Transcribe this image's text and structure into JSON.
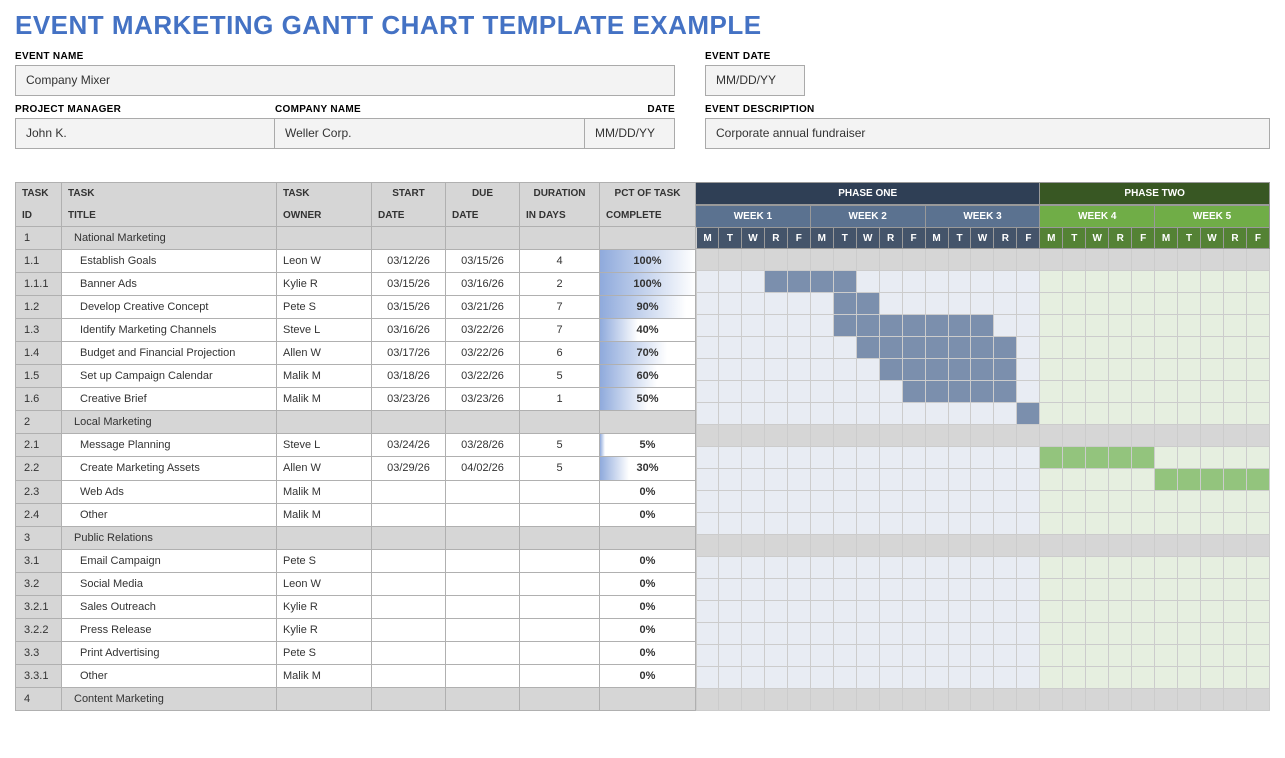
{
  "title": "EVENT MARKETING GANTT CHART TEMPLATE EXAMPLE",
  "meta": {
    "event_name_label": "EVENT NAME",
    "event_name": "Company Mixer",
    "event_date_label": "EVENT DATE",
    "event_date": "MM/DD/YY",
    "pm_label": "PROJECT MANAGER",
    "pm": "John K.",
    "company_label": "COMPANY NAME",
    "company": "Weller Corp.",
    "date_label": "DATE",
    "date": "MM/DD/YY",
    "desc_label": "EVENT DESCRIPTION",
    "desc": "Corporate annual fundraiser"
  },
  "headers": {
    "task": "TASK",
    "id": "ID",
    "title": "TITLE",
    "owner": "OWNER",
    "start": "START",
    "date": "DATE",
    "due": "DUE",
    "duration": "DURATION",
    "days": "IN DAYS",
    "pct": "PCT OF TASK",
    "complete": "COMPLETE"
  },
  "phases": [
    {
      "label": "PHASE ONE",
      "weeks": 3,
      "bg_header": "#2f3f55",
      "bg_week": "#5b7290",
      "bg_day": "#44546a"
    },
    {
      "label": "PHASE TWO",
      "weeks": 2,
      "bg_header": "#385723",
      "bg_week": "#70ad47",
      "bg_day": "#548235"
    }
  ],
  "weeks": [
    "WEEK 1",
    "WEEK 2",
    "WEEK 3",
    "WEEK 4",
    "WEEK 5"
  ],
  "days": [
    "M",
    "T",
    "W",
    "R",
    "F"
  ],
  "colors": {
    "phase1_light": "#e8ecf3",
    "phase2_light": "#e6efe0",
    "bar_phase1": "#7b8fad",
    "bar_phase2": "#93c47d",
    "section_bg": "#d6d6d6",
    "title_color": "#4472c4",
    "pct_gradient_start": "#8faadc"
  },
  "tasks": [
    {
      "id": "1",
      "title": "National Marketing",
      "owner": "",
      "start": "",
      "due": "",
      "dur": "",
      "pct": null,
      "section": true
    },
    {
      "id": "1.1",
      "title": "Establish Goals",
      "owner": "Leon W",
      "start": "03/12/26",
      "due": "03/15/26",
      "dur": "4",
      "pct": 100,
      "bar_start": 4,
      "bar_len": 4,
      "phase": 1,
      "child": true
    },
    {
      "id": "1.1.1",
      "title": "Banner Ads",
      "owner": "Kylie R",
      "start": "03/15/26",
      "due": "03/16/26",
      "dur": "2",
      "pct": 100,
      "bar_start": 7,
      "bar_len": 2,
      "phase": 1,
      "child": true
    },
    {
      "id": "1.2",
      "title": "Develop Creative Concept",
      "owner": "Pete S",
      "start": "03/15/26",
      "due": "03/21/26",
      "dur": "7",
      "pct": 90,
      "bar_start": 7,
      "bar_len": 7,
      "phase": 1,
      "child": true
    },
    {
      "id": "1.3",
      "title": "Identify Marketing Channels",
      "owner": "Steve L",
      "start": "03/16/26",
      "due": "03/22/26",
      "dur": "7",
      "pct": 40,
      "bar_start": 8,
      "bar_len": 7,
      "phase": 1,
      "child": true
    },
    {
      "id": "1.4",
      "title": "Budget and Financial Projection",
      "owner": "Allen W",
      "start": "03/17/26",
      "due": "03/22/26",
      "dur": "6",
      "pct": 70,
      "bar_start": 9,
      "bar_len": 6,
      "phase": 1,
      "child": true
    },
    {
      "id": "1.5",
      "title": "Set up Campaign Calendar",
      "owner": "Malik M",
      "start": "03/18/26",
      "due": "03/22/26",
      "dur": "5",
      "pct": 60,
      "bar_start": 10,
      "bar_len": 5,
      "phase": 1,
      "child": true
    },
    {
      "id": "1.6",
      "title": "Creative Brief",
      "owner": "Malik M",
      "start": "03/23/26",
      "due": "03/23/26",
      "dur": "1",
      "pct": 50,
      "bar_start": 15,
      "bar_len": 1,
      "phase": 1,
      "child": true
    },
    {
      "id": "2",
      "title": "Local Marketing",
      "owner": "",
      "start": "",
      "due": "",
      "dur": "",
      "pct": null,
      "section": true
    },
    {
      "id": "2.1",
      "title": "Message Planning",
      "owner": "Steve L",
      "start": "03/24/26",
      "due": "03/28/26",
      "dur": "5",
      "pct": 5,
      "bar_start": 16,
      "bar_len": 5,
      "phase": 2,
      "child": true
    },
    {
      "id": "2.2",
      "title": "Create Marketing Assets",
      "owner": "Allen W",
      "start": "03/29/26",
      "due": "04/02/26",
      "dur": "5",
      "pct": 30,
      "bar_start": 21,
      "bar_len": 5,
      "phase": 2,
      "child": true
    },
    {
      "id": "2.3",
      "title": "Web Ads",
      "owner": "Malik M",
      "start": "",
      "due": "",
      "dur": "",
      "pct": 0,
      "child": true
    },
    {
      "id": "2.4",
      "title": "Other",
      "owner": "Malik M",
      "start": "",
      "due": "",
      "dur": "",
      "pct": 0,
      "child": true
    },
    {
      "id": "3",
      "title": "Public Relations",
      "owner": "",
      "start": "",
      "due": "",
      "dur": "",
      "pct": null,
      "section": true
    },
    {
      "id": "3.1",
      "title": "Email Campaign",
      "owner": "Pete S",
      "start": "",
      "due": "",
      "dur": "",
      "pct": 0,
      "child": true
    },
    {
      "id": "3.2",
      "title": "Social Media",
      "owner": "Leon W",
      "start": "",
      "due": "",
      "dur": "",
      "pct": 0,
      "child": true
    },
    {
      "id": "3.2.1",
      "title": "Sales Outreach",
      "owner": "Kylie R",
      "start": "",
      "due": "",
      "dur": "",
      "pct": 0,
      "child": true
    },
    {
      "id": "3.2.2",
      "title": "Press Release",
      "owner": "Kylie R",
      "start": "",
      "due": "",
      "dur": "",
      "pct": 0,
      "child": true
    },
    {
      "id": "3.3",
      "title": "Print Advertising",
      "owner": "Pete S",
      "start": "",
      "due": "",
      "dur": "",
      "pct": 0,
      "child": true
    },
    {
      "id": "3.3.1",
      "title": "Other",
      "owner": "Malik M",
      "start": "",
      "due": "",
      "dur": "",
      "pct": 0,
      "child": true
    },
    {
      "id": "4",
      "title": "Content Marketing",
      "owner": "",
      "start": "",
      "due": "",
      "dur": "",
      "pct": null,
      "section": true
    }
  ],
  "total_days": 25,
  "phase1_days": 15
}
